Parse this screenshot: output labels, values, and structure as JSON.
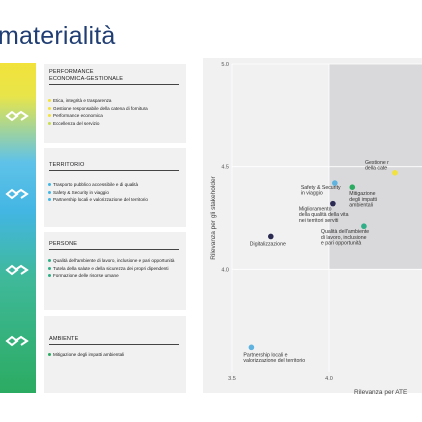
{
  "page_title": "materialità",
  "colors": {
    "gradient_top": "#f2e23a",
    "gradient_mid": "#43b6e3",
    "gradient_bottom": "#2bab62",
    "title": "#203e73",
    "chart_panel": "#f1f1f2",
    "quadrant_highlight": "#d9d9db"
  },
  "categories": [
    {
      "title_line1": "PERFORMANCE",
      "title_line2": "ECONOMICA-GESTIONALE",
      "icon": "handshake-icon",
      "items": [
        {
          "label": "Etica, integrità e trasparenza",
          "color": "#f2e23a"
        },
        {
          "label": "Gestione responsabile della catena di fornitura",
          "color": "#f2e23a"
        },
        {
          "label": "Performance economica",
          "color": "#f2e23a"
        },
        {
          "label": "Eccellenza del servizio",
          "color": "#c9dd4f"
        }
      ]
    },
    {
      "title_line1": "TERRITORIO",
      "title_line2": "",
      "icon": "handshake-icon",
      "items": [
        {
          "label": "Trasporto pubblico accessibile e di qualità",
          "color": "#43b6e3"
        },
        {
          "label": "Safety & Security in viaggio",
          "color": "#43b6e3"
        },
        {
          "label": "Partnership locali e valorizzazione del territorio",
          "color": "#43b6e3"
        }
      ]
    },
    {
      "title_line1": "PERSONE",
      "title_line2": "",
      "icon": "handshake-icon",
      "items": [
        {
          "label": "Qualità dell'ambiente di lavoro, inclusione e pari opportunità",
          "color": "#2fae87"
        },
        {
          "label": "Tutela della salute e della sicurezza dei propri dipendenti",
          "color": "#2fae87"
        },
        {
          "label": "Formazione delle risorse umane",
          "color": "#2fae87"
        }
      ]
    },
    {
      "title_line1": "AMBIENTE",
      "title_line2": "",
      "icon": "handshake-icon",
      "items": [
        {
          "label": "Mitigazione degli impatti ambientali",
          "color": "#2bab62"
        }
      ]
    }
  ],
  "chart_data": {
    "type": "scatter",
    "xlabel": "Rilevanza per ATE",
    "ylabel": "Rilevanza per gli stakeholder",
    "xlim": [
      3.5,
      4.5
    ],
    "ylim": [
      3.5,
      5.0
    ],
    "x_ticks": [
      "3.5",
      "4.0"
    ],
    "y_ticks": [
      "4.0",
      "4.5",
      "5.0"
    ],
    "highlight_quadrant": {
      "x_from": 4.0,
      "y_from": 4.0
    },
    "points": [
      {
        "label": "Digitalizzazione",
        "x": 3.7,
        "y": 4.16,
        "color": "#2a2a52"
      },
      {
        "label": "Partnership locali e valorizzazione del territorio",
        "x": 3.6,
        "y": 3.62,
        "color": "#5fb3e0"
      },
      {
        "label": "Safety & Security in viaggio",
        "x": 4.03,
        "y": 4.42,
        "color": "#5fb3e0"
      },
      {
        "label": "Miglioramento della qualità della vita nei territori serviti",
        "x": 4.02,
        "y": 4.32,
        "color": "#2a2a52"
      },
      {
        "label": "Mitigazione degli impatti ambientali",
        "x": 4.12,
        "y": 4.4,
        "color": "#2bab62"
      },
      {
        "label": "Qualità dell'ambiente di lavoro, inclusione e pari opportunità",
        "x": 4.18,
        "y": 4.21,
        "color": "#2fae87"
      },
      {
        "label": "Gestione della cate",
        "x": 4.34,
        "y": 4.47,
        "color": "#f2e23a"
      }
    ]
  }
}
